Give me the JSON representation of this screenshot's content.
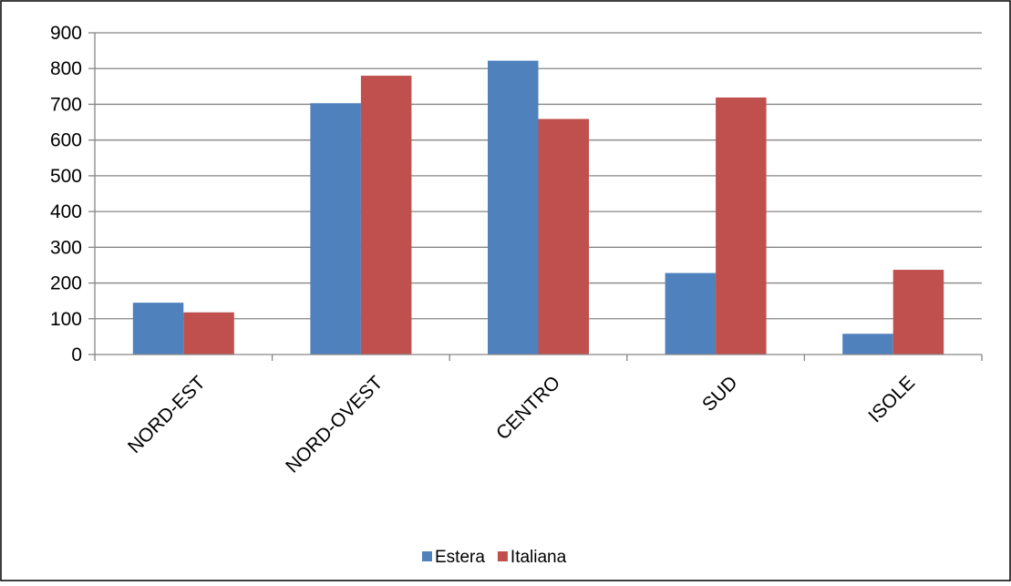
{
  "chart_data": {
    "type": "bar",
    "categories": [
      "NORD-EST",
      "NORD-OVEST",
      "CENTRO",
      "SUD",
      "ISOLE"
    ],
    "series": [
      {
        "name": "Estera",
        "color": "#4F81BD",
        "values": [
          145,
          703,
          822,
          228,
          58
        ]
      },
      {
        "name": "Italiana",
        "color": "#C0504D",
        "values": [
          118,
          780,
          659,
          719,
          237
        ]
      }
    ],
    "yticks": [
      "0",
      "100",
      "200",
      "300",
      "400",
      "500",
      "600",
      "700",
      "800",
      "900"
    ],
    "ylim": [
      0,
      900
    ],
    "grid": true,
    "legend_position": "bottom",
    "title": "",
    "xlabel": "",
    "ylabel": ""
  }
}
